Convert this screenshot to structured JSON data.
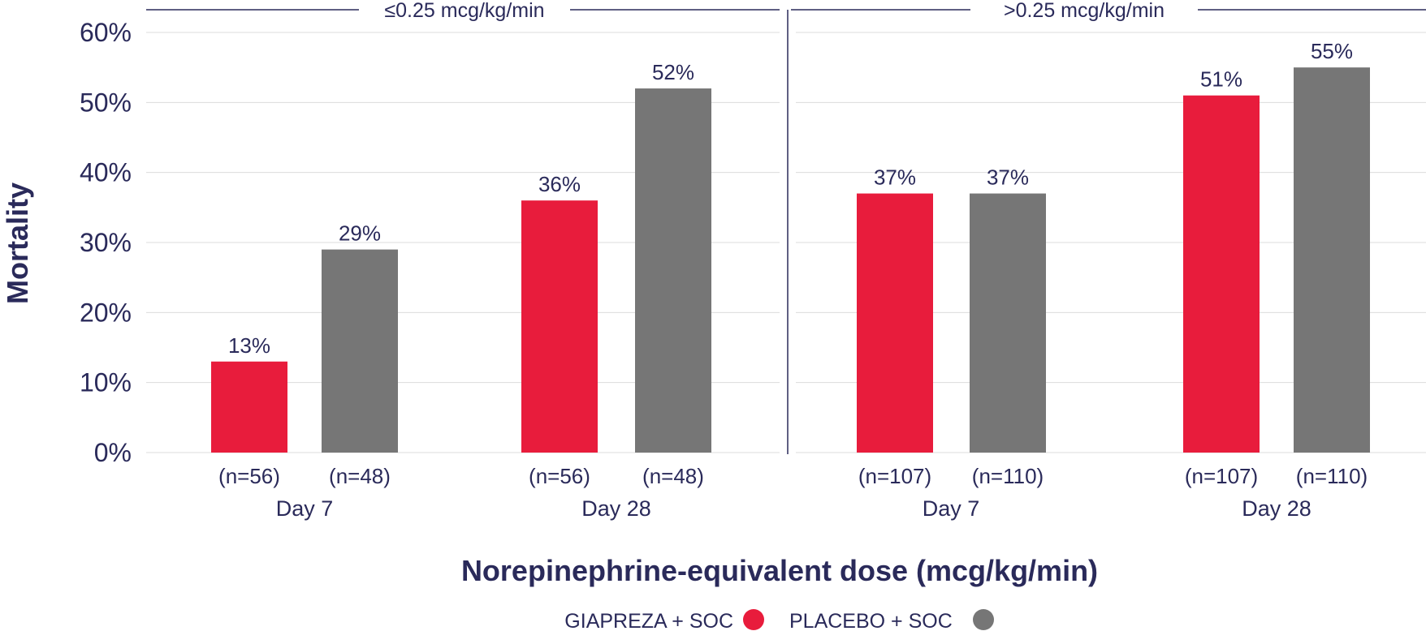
{
  "chart_data": {
    "type": "bar",
    "ylabel": "Mortality",
    "xlabel": "Norepinephrine-equivalent dose (mcg/kg/min)",
    "ylim": [
      0,
      60
    ],
    "yticks": [
      "0%",
      "10%",
      "20%",
      "30%",
      "40%",
      "50%",
      "60%"
    ],
    "grid": true,
    "legend_position": "bottom-center",
    "series": [
      {
        "name": "GIAPREZA + SOC",
        "color": "#e81c3c"
      },
      {
        "name": "PLACEBO + SOC",
        "color": "#767676"
      }
    ],
    "panels": [
      {
        "label": "≤0.25 mcg/kg/min",
        "groups": [
          {
            "label": "Day 7",
            "values": [
              13,
              29
            ],
            "value_labels": [
              "13%",
              "29%"
            ],
            "n_labels": [
              "(n=56)",
              "(n=48)"
            ]
          },
          {
            "label": "Day 28",
            "values": [
              36,
              52
            ],
            "value_labels": [
              "36%",
              "52%"
            ],
            "n_labels": [
              "(n=56)",
              "(n=48)"
            ]
          }
        ]
      },
      {
        "label": ">0.25 mcg/kg/min",
        "groups": [
          {
            "label": "Day 7",
            "values": [
              37,
              37
            ],
            "value_labels": [
              "37%",
              "37%"
            ],
            "n_labels": [
              "(n=107)",
              "(n=110)"
            ]
          },
          {
            "label": "Day 28",
            "values": [
              51,
              55
            ],
            "value_labels": [
              "51%",
              "55%"
            ],
            "n_labels": [
              "(n=107)",
              "(n=110)"
            ]
          }
        ]
      }
    ]
  }
}
